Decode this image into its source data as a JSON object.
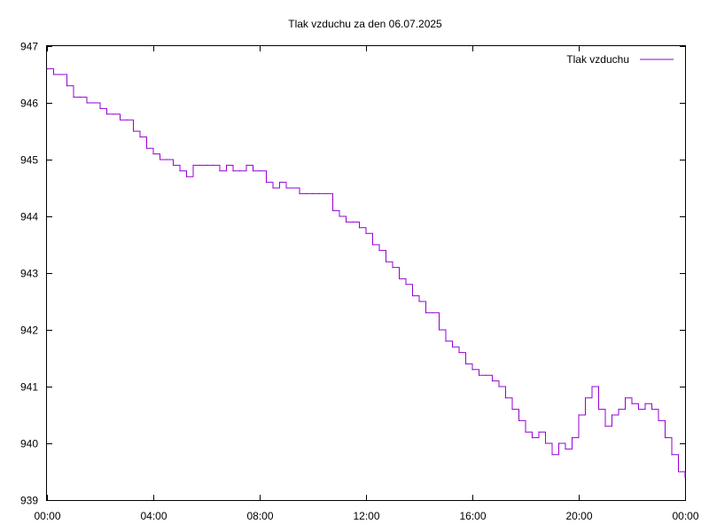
{
  "chart_data": {
    "type": "line",
    "title": "Tlak vzduchu za den 06.07.2025",
    "xlabel": "",
    "ylabel": "",
    "xlim": [
      "00:00",
      "24:00"
    ],
    "ylim": [
      939,
      947
    ],
    "x_tick_labels": [
      "00:00",
      "04:00",
      "08:00",
      "12:00",
      "16:00",
      "20:00",
      "00:00"
    ],
    "y_tick_labels": [
      "939",
      "940",
      "941",
      "942",
      "943",
      "944",
      "945",
      "946",
      "947"
    ],
    "legend_position": "top-right",
    "grid": false,
    "series": [
      {
        "name": "Tlak vzduchu",
        "color": "#9400d3",
        "x": [
          "00:00",
          "00:15",
          "00:30",
          "00:45",
          "01:00",
          "01:15",
          "01:30",
          "01:45",
          "02:00",
          "02:15",
          "02:30",
          "02:45",
          "03:00",
          "03:15",
          "03:30",
          "03:45",
          "04:00",
          "04:15",
          "04:30",
          "04:45",
          "05:00",
          "05:15",
          "05:30",
          "05:45",
          "06:00",
          "06:15",
          "06:30",
          "06:45",
          "07:00",
          "07:15",
          "07:30",
          "07:45",
          "08:00",
          "08:15",
          "08:30",
          "08:45",
          "09:00",
          "09:15",
          "09:30",
          "09:45",
          "10:00",
          "10:15",
          "10:30",
          "10:45",
          "11:00",
          "11:15",
          "11:30",
          "11:45",
          "12:00",
          "12:15",
          "12:30",
          "12:45",
          "13:00",
          "13:15",
          "13:30",
          "13:45",
          "14:00",
          "14:15",
          "14:30",
          "14:45",
          "15:00",
          "15:15",
          "15:30",
          "15:45",
          "16:00",
          "16:15",
          "16:30",
          "16:45",
          "17:00",
          "17:15",
          "17:30",
          "17:45",
          "18:00",
          "18:15",
          "18:30",
          "18:45",
          "19:00",
          "19:15",
          "19:30",
          "19:45",
          "20:00",
          "20:15",
          "20:30",
          "20:45",
          "21:00",
          "21:15",
          "21:30",
          "21:45",
          "22:00",
          "22:15",
          "22:30",
          "22:45",
          "23:00",
          "23:15",
          "23:30",
          "23:45",
          "24:00"
        ],
        "y": [
          946.6,
          946.5,
          946.5,
          946.3,
          946.1,
          946.1,
          946.0,
          946.0,
          945.9,
          945.8,
          945.8,
          945.7,
          945.7,
          945.5,
          945.4,
          945.2,
          945.1,
          945.0,
          945.0,
          944.9,
          944.8,
          944.7,
          944.9,
          944.9,
          944.9,
          944.9,
          944.8,
          944.9,
          944.8,
          944.8,
          944.9,
          944.8,
          944.8,
          944.6,
          944.5,
          944.6,
          944.5,
          944.5,
          944.4,
          944.4,
          944.4,
          944.4,
          944.4,
          944.1,
          944.0,
          943.9,
          943.9,
          943.8,
          943.7,
          943.5,
          943.4,
          943.2,
          943.1,
          942.9,
          942.8,
          942.6,
          942.5,
          942.3,
          942.3,
          942.0,
          941.8,
          941.7,
          941.6,
          941.4,
          941.3,
          941.2,
          941.2,
          941.1,
          941.0,
          940.8,
          940.6,
          940.4,
          940.2,
          940.1,
          940.2,
          940.0,
          939.8,
          940.0,
          939.9,
          940.1,
          940.5,
          940.8,
          941.0,
          940.6,
          940.3,
          940.5,
          940.6,
          940.8,
          940.7,
          940.6,
          940.7,
          940.6,
          940.4,
          940.1,
          939.8,
          939.5,
          939.4
        ]
      }
    ]
  }
}
